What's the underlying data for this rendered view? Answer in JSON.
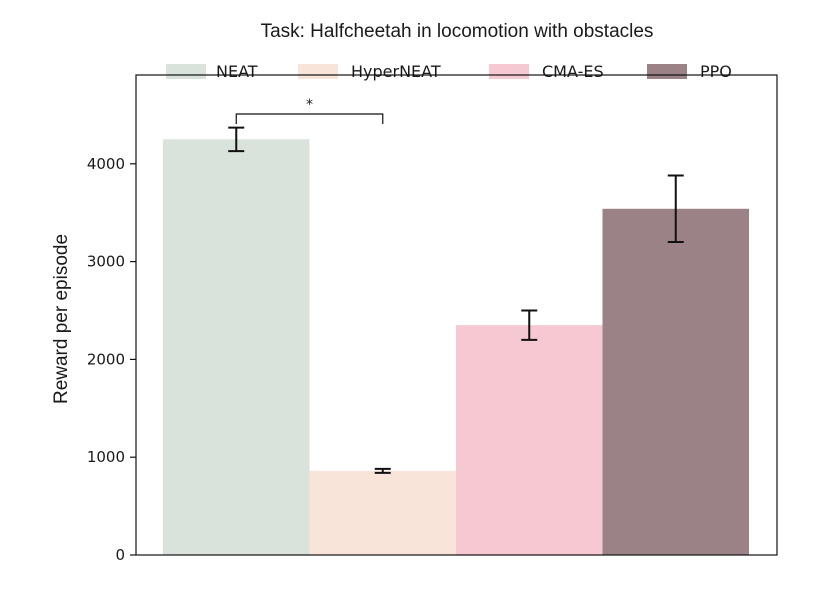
{
  "chart_data": {
    "type": "bar",
    "title": "Task: Halfcheetah in locomotion with obstacles",
    "xlabel": "",
    "ylabel": "Reward per episode",
    "ylim": [
      0,
      4500
    ],
    "yticks": [
      0,
      1000,
      2000,
      3000,
      4000
    ],
    "grid": false,
    "legend_position": "top",
    "series": [
      {
        "name": "NEAT",
        "value": 4250,
        "error": 120,
        "color": "#d9e3db"
      },
      {
        "name": "HyperNEAT",
        "value": 860,
        "error": 20,
        "color": "#f8e4d9"
      },
      {
        "name": "CMA-ES",
        "value": 2350,
        "error": 150,
        "color": "#f6c8d1"
      },
      {
        "name": "PPO",
        "value": 3540,
        "error": 340,
        "color": "#9a8287"
      }
    ],
    "annotations": [
      {
        "type": "significance",
        "label": "*",
        "from": "NEAT",
        "to": "HyperNEAT"
      }
    ]
  }
}
